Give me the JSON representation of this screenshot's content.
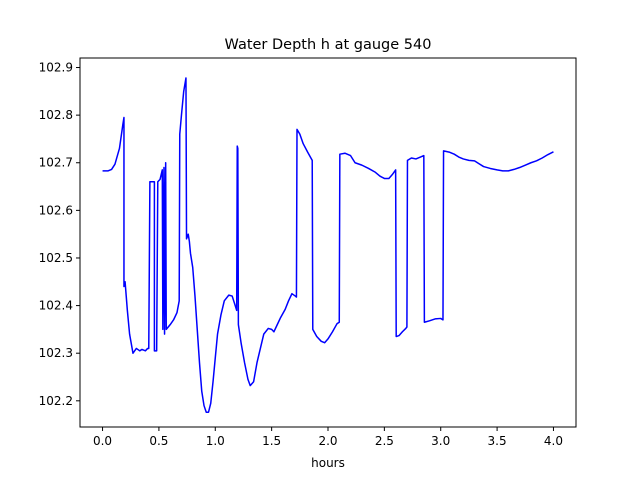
{
  "chart_data": {
    "type": "line",
    "title": "Water Depth h at gauge 540",
    "xlabel": "hours",
    "ylabel": "",
    "xlim": [
      -0.2,
      4.2
    ],
    "ylim": [
      102.145,
      102.92
    ],
    "x_ticks": [
      0.0,
      0.5,
      1.0,
      1.5,
      2.0,
      2.5,
      3.0,
      3.5,
      4.0
    ],
    "x_tick_labels": [
      "0.0",
      "0.5",
      "1.0",
      "1.5",
      "2.0",
      "2.5",
      "3.0",
      "3.5",
      "4.0"
    ],
    "y_ticks": [
      102.2,
      102.3,
      102.4,
      102.5,
      102.6,
      102.7,
      102.8,
      102.9
    ],
    "y_tick_labels": [
      "102.2",
      "102.3",
      "102.4",
      "102.5",
      "102.6",
      "102.7",
      "102.8",
      "102.9"
    ],
    "grid": false,
    "legend": "none",
    "series": [
      {
        "color": "#0000ff",
        "points": [
          [
            0.0,
            102.683
          ],
          [
            0.05,
            102.683
          ],
          [
            0.08,
            102.686
          ],
          [
            0.11,
            102.697
          ],
          [
            0.15,
            102.73
          ],
          [
            0.18,
            102.78
          ],
          [
            0.19,
            102.795
          ],
          [
            0.19,
            102.44
          ],
          [
            0.2,
            102.45
          ],
          [
            0.21,
            102.42
          ],
          [
            0.22,
            102.39
          ],
          [
            0.24,
            102.34
          ],
          [
            0.27,
            102.3
          ],
          [
            0.3,
            102.31
          ],
          [
            0.33,
            102.305
          ],
          [
            0.35,
            102.308
          ],
          [
            0.38,
            102.305
          ],
          [
            0.4,
            102.31
          ],
          [
            0.41,
            102.31
          ],
          [
            0.42,
            102.66
          ],
          [
            0.46,
            102.66
          ],
          [
            0.46,
            102.305
          ],
          [
            0.48,
            102.305
          ],
          [
            0.49,
            102.66
          ],
          [
            0.51,
            102.665
          ],
          [
            0.52,
            102.675
          ],
          [
            0.53,
            102.685
          ],
          [
            0.535,
            102.35
          ],
          [
            0.545,
            102.69
          ],
          [
            0.55,
            102.34
          ],
          [
            0.56,
            102.7
          ],
          [
            0.565,
            102.35
          ],
          [
            0.6,
            102.36
          ],
          [
            0.63,
            102.37
          ],
          [
            0.66,
            102.385
          ],
          [
            0.68,
            102.41
          ],
          [
            0.685,
            102.76
          ],
          [
            0.7,
            102.8
          ],
          [
            0.72,
            102.85
          ],
          [
            0.74,
            102.878
          ],
          [
            0.745,
            102.54
          ],
          [
            0.76,
            102.55
          ],
          [
            0.77,
            102.535
          ],
          [
            0.78,
            102.51
          ],
          [
            0.8,
            102.48
          ],
          [
            0.82,
            102.42
          ],
          [
            0.84,
            102.35
          ],
          [
            0.86,
            102.28
          ],
          [
            0.88,
            102.22
          ],
          [
            0.9,
            102.19
          ],
          [
            0.92,
            102.176
          ],
          [
            0.94,
            102.176
          ],
          [
            0.96,
            102.195
          ],
          [
            0.98,
            102.24
          ],
          [
            1.0,
            102.29
          ],
          [
            1.02,
            102.34
          ],
          [
            1.05,
            102.38
          ],
          [
            1.08,
            102.41
          ],
          [
            1.12,
            102.422
          ],
          [
            1.15,
            102.42
          ],
          [
            1.17,
            102.405
          ],
          [
            1.19,
            102.39
          ],
          [
            1.195,
            102.735
          ],
          [
            1.2,
            102.73
          ],
          [
            1.205,
            102.36
          ],
          [
            1.23,
            102.32
          ],
          [
            1.26,
            102.28
          ],
          [
            1.29,
            102.245
          ],
          [
            1.31,
            102.232
          ],
          [
            1.34,
            102.24
          ],
          [
            1.37,
            102.28
          ],
          [
            1.4,
            102.31
          ],
          [
            1.43,
            102.34
          ],
          [
            1.47,
            102.352
          ],
          [
            1.5,
            102.35
          ],
          [
            1.52,
            102.345
          ],
          [
            1.55,
            102.36
          ],
          [
            1.58,
            102.375
          ],
          [
            1.62,
            102.392
          ],
          [
            1.65,
            102.41
          ],
          [
            1.68,
            102.425
          ],
          [
            1.71,
            102.42
          ],
          [
            1.72,
            102.418
          ],
          [
            1.725,
            102.77
          ],
          [
            1.75,
            102.76
          ],
          [
            1.78,
            102.74
          ],
          [
            1.82,
            102.722
          ],
          [
            1.86,
            102.705
          ],
          [
            1.865,
            102.35
          ],
          [
            1.9,
            102.335
          ],
          [
            1.94,
            102.325
          ],
          [
            1.97,
            102.322
          ],
          [
            2.0,
            102.33
          ],
          [
            2.04,
            102.345
          ],
          [
            2.08,
            102.362
          ],
          [
            2.1,
            102.365
          ],
          [
            2.105,
            102.718
          ],
          [
            2.15,
            102.72
          ],
          [
            2.2,
            102.715
          ],
          [
            2.24,
            102.7
          ],
          [
            2.3,
            102.695
          ],
          [
            2.36,
            102.688
          ],
          [
            2.42,
            102.68
          ],
          [
            2.46,
            102.672
          ],
          [
            2.5,
            102.667
          ],
          [
            2.54,
            102.667
          ],
          [
            2.57,
            102.675
          ],
          [
            2.6,
            102.685
          ],
          [
            2.605,
            102.335
          ],
          [
            2.63,
            102.337
          ],
          [
            2.66,
            102.345
          ],
          [
            2.69,
            102.352
          ],
          [
            2.7,
            102.355
          ],
          [
            2.705,
            102.705
          ],
          [
            2.74,
            102.71
          ],
          [
            2.78,
            102.708
          ],
          [
            2.82,
            102.712
          ],
          [
            2.85,
            102.715
          ],
          [
            2.855,
            102.365
          ],
          [
            2.9,
            102.368
          ],
          [
            2.95,
            102.372
          ],
          [
            3.0,
            102.373
          ],
          [
            3.02,
            102.37
          ],
          [
            3.025,
            102.725
          ],
          [
            3.08,
            102.722
          ],
          [
            3.12,
            102.718
          ],
          [
            3.16,
            102.712
          ],
          [
            3.2,
            102.708
          ],
          [
            3.25,
            102.705
          ],
          [
            3.3,
            102.704
          ],
          [
            3.34,
            102.698
          ],
          [
            3.38,
            102.692
          ],
          [
            3.44,
            102.688
          ],
          [
            3.5,
            102.685
          ],
          [
            3.55,
            102.683
          ],
          [
            3.6,
            102.683
          ],
          [
            3.65,
            102.686
          ],
          [
            3.7,
            102.69
          ],
          [
            3.75,
            102.695
          ],
          [
            3.8,
            102.7
          ],
          [
            3.85,
            102.704
          ],
          [
            3.9,
            102.71
          ],
          [
            3.95,
            102.717
          ],
          [
            4.0,
            102.723
          ]
        ]
      }
    ]
  }
}
